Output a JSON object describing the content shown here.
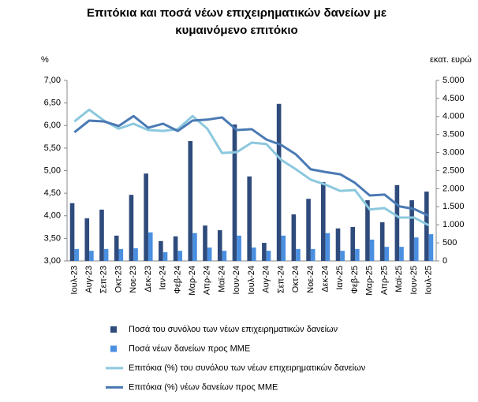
{
  "chart_data": {
    "type": "combo",
    "title": "Επιτόκια και ποσά νέων επιχειρηματικών δανείων με κυμαινόμενο επιτόκιο",
    "y_label": "%",
    "y2_label": "εκατ. ευρώ",
    "categories": [
      "Ιουλ-23",
      "Αυγ-23",
      "Σεπ-23",
      "Οκτ-23",
      "Νοε-23",
      "Δεκ-23",
      "Ιαν-24",
      "Φεβ-24",
      "Μαρ-24",
      "Απρ-24",
      "Μαϊ-24",
      "Ιουν-24",
      "Ιουλ-24",
      "Αυγ-24",
      "Σεπ-24",
      "Οκτ-24",
      "Νοε-24",
      "Δεκ-24",
      "Ιαν-25",
      "Φεβ-25",
      "Μαρ-25",
      "Απρ-25",
      "Μαϊ-25",
      "Ιουν-25",
      "Ιουλ-25"
    ],
    "series": [
      {
        "name": "Ποσά του συνόλου των νέων επιχειρηματικών δανείων",
        "type": "bar",
        "axis": "y2",
        "color": "#2f4b7c",
        "values": [
          1600,
          1180,
          1420,
          700,
          1830,
          2420,
          550,
          680,
          3320,
          980,
          850,
          3780,
          2340,
          500,
          4350,
          1290,
          1720,
          2180,
          900,
          940,
          1680,
          1070,
          2100,
          1680,
          1920
        ]
      },
      {
        "name": "Ποσά νέων δανείων προς ΜΜΕ",
        "type": "bar",
        "axis": "y2",
        "color": "#4a8fe0",
        "values": [
          330,
          280,
          330,
          330,
          350,
          790,
          240,
          280,
          770,
          370,
          280,
          700,
          370,
          280,
          700,
          330,
          330,
          770,
          280,
          330,
          590,
          390,
          390,
          650,
          740
        ]
      },
      {
        "name": "Επιτόκια (%) του συνόλου των νέων επιχειρηματικών δανείων",
        "type": "line",
        "color": "#8cc8de",
        "values": [
          6.09,
          6.35,
          6.11,
          5.93,
          6.04,
          5.9,
          5.88,
          5.92,
          6.21,
          5.93,
          5.39,
          5.41,
          5.62,
          5.59,
          5.24,
          5.03,
          4.8,
          4.69,
          4.55,
          4.57,
          4.14,
          4.17,
          3.96,
          3.96,
          3.79
        ]
      },
      {
        "name": "Επιτόκια (%) νέων δανείων προς ΜΜΕ",
        "type": "line",
        "color": "#4a7ab4",
        "values": [
          5.85,
          6.11,
          6.09,
          5.99,
          6.21,
          5.95,
          6.04,
          5.88,
          6.11,
          6.13,
          6.18,
          5.9,
          5.92,
          5.69,
          5.57,
          5.36,
          5.03,
          4.97,
          4.92,
          4.73,
          4.45,
          4.47,
          4.21,
          4.15,
          4.0
        ]
      }
    ],
    "ylim": [
      3,
      7
    ],
    "yticks": [
      {
        "value": 3,
        "label": "3,00"
      },
      {
        "value": 3.5,
        "label": "3,50"
      },
      {
        "value": 4,
        "label": "4,00"
      },
      {
        "value": 4.5,
        "label": "4,50"
      },
      {
        "value": 5,
        "label": "5,00"
      },
      {
        "value": 5.5,
        "label": "5,50"
      },
      {
        "value": 6,
        "label": "6,00"
      },
      {
        "value": 6.5,
        "label": "6,50"
      },
      {
        "value": 7,
        "label": "7,00"
      }
    ],
    "y2lim": [
      0,
      5000
    ],
    "y2ticks": [
      0,
      500,
      {
        "value": 1000,
        "label": "1.000"
      },
      {
        "value": 1500,
        "label": "1.500"
      },
      {
        "value": 2000,
        "label": "2.000"
      },
      {
        "value": 2500,
        "label": "2.500"
      },
      {
        "value": 3000,
        "label": "3.000"
      },
      {
        "value": 3500,
        "label": "3.500"
      },
      {
        "value": 4000,
        "label": "4.000"
      },
      {
        "value": 4500,
        "label": "4.500"
      },
      {
        "value": 5000,
        "label": "5.000"
      }
    ],
    "legend": "bottom"
  }
}
